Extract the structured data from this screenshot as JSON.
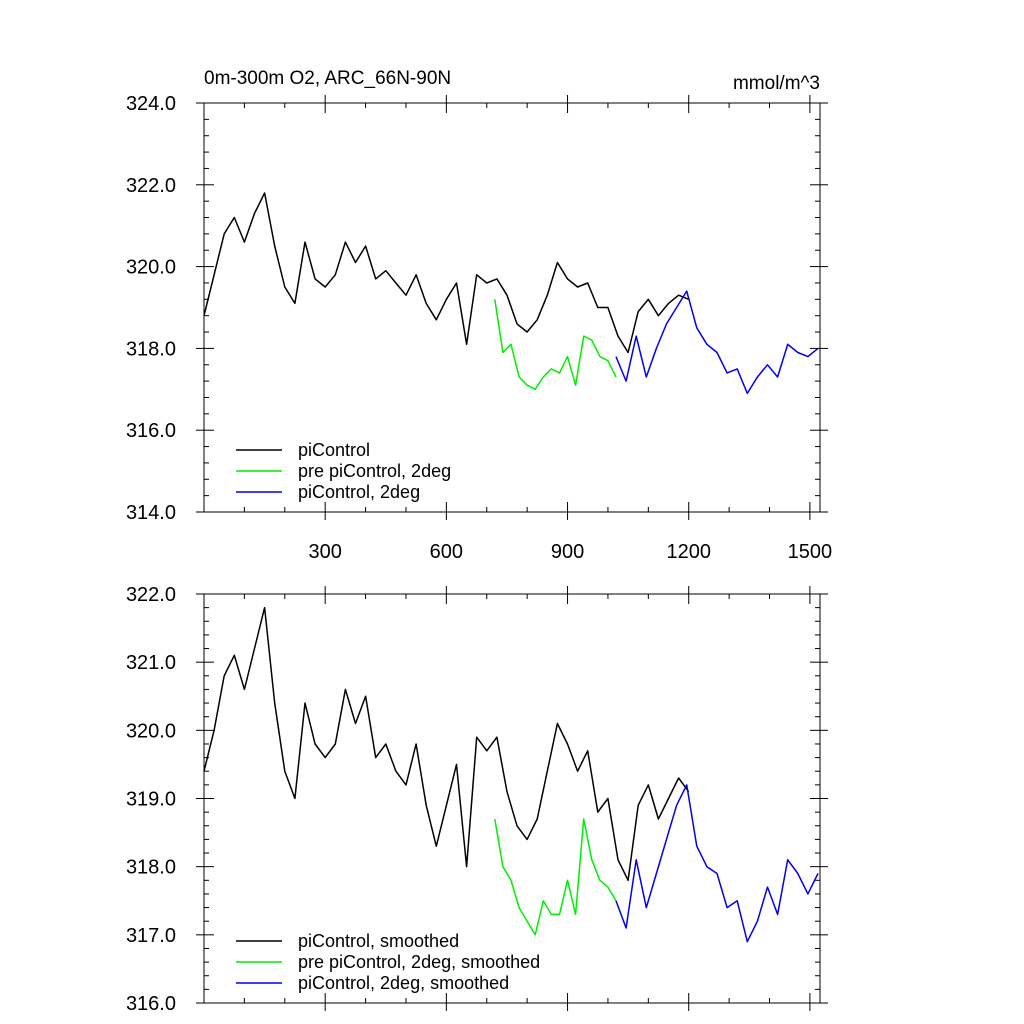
{
  "chart_data": [
    {
      "type": "line",
      "title": "0m-300m O2, ARC_66N-90N",
      "units": "mmol/m^3",
      "xlim": [
        0,
        1525
      ],
      "ylim": [
        314,
        324
      ],
      "xticks": [
        300,
        600,
        900,
        1200,
        1500
      ],
      "xtick_labels": [
        "300",
        "600",
        "900",
        "1200",
        "1500"
      ],
      "yticks": [
        314,
        316,
        318,
        320,
        322,
        324
      ],
      "ytick_labels": [
        "314.0",
        "316.0",
        "318.0",
        "320.0",
        "322.0",
        "324.0"
      ],
      "legend_placement": "bottom-left",
      "series": [
        {
          "name": "piControl",
          "color": "#000000",
          "x": [
            0,
            25,
            50,
            75,
            100,
            125,
            150,
            175,
            200,
            225,
            250,
            275,
            300,
            325,
            350,
            375,
            400,
            425,
            450,
            475,
            500,
            525,
            550,
            575,
            600,
            625,
            650,
            675,
            700,
            725,
            750,
            775,
            800,
            825,
            850,
            875,
            900,
            925,
            950,
            975,
            1000,
            1025,
            1050,
            1075,
            1100,
            1125,
            1150,
            1175,
            1200
          ],
          "y": [
            318.8,
            319.8,
            320.8,
            321.2,
            320.6,
            321.3,
            321.8,
            320.5,
            319.5,
            319.1,
            320.6,
            319.7,
            319.5,
            319.8,
            320.6,
            320.1,
            320.5,
            319.7,
            319.9,
            319.6,
            319.3,
            319.8,
            319.1,
            318.7,
            319.2,
            319.6,
            318.1,
            319.8,
            319.6,
            319.7,
            319.3,
            318.6,
            318.4,
            318.7,
            319.3,
            320.1,
            319.7,
            319.5,
            319.6,
            319.0,
            319.0,
            318.3,
            317.9,
            318.9,
            319.2,
            318.8,
            319.1,
            319.3,
            319.2
          ]
        },
        {
          "name": "pre piControl, 2deg",
          "color": "#00ee00",
          "x": [
            720,
            740,
            760,
            780,
            800,
            820,
            840,
            860,
            880,
            900,
            920,
            940,
            960,
            980,
            1000,
            1020
          ],
          "y": [
            319.2,
            317.9,
            318.1,
            317.3,
            317.1,
            317.0,
            317.3,
            317.5,
            317.4,
            317.8,
            317.1,
            318.3,
            318.2,
            317.8,
            317.7,
            317.3
          ]
        },
        {
          "name": "piControl, 2deg",
          "color": "#0000ee",
          "x": [
            1020,
            1045,
            1070,
            1095,
            1120,
            1145,
            1170,
            1195,
            1220,
            1245,
            1270,
            1295,
            1320,
            1345,
            1370,
            1395,
            1420,
            1445,
            1470,
            1495,
            1520
          ],
          "y": [
            317.8,
            317.2,
            318.3,
            317.3,
            318.0,
            318.6,
            319.0,
            319.4,
            318.5,
            318.1,
            317.9,
            317.4,
            317.5,
            316.9,
            317.3,
            317.6,
            317.3,
            318.1,
            317.9,
            317.8,
            318.0
          ]
        }
      ]
    },
    {
      "type": "line",
      "xlim": [
        0,
        1525
      ],
      "ylim": [
        316,
        322
      ],
      "yticks": [
        316,
        317,
        318,
        319,
        320,
        321,
        322
      ],
      "ytick_labels": [
        "316.0",
        "317.0",
        "318.0",
        "319.0",
        "320.0",
        "321.0",
        "322.0"
      ],
      "legend_placement": "bottom-left",
      "series": [
        {
          "name": "piControl, smoothed",
          "color": "#000000",
          "x": [
            0,
            25,
            50,
            75,
            100,
            125,
            150,
            175,
            200,
            225,
            250,
            275,
            300,
            325,
            350,
            375,
            400,
            425,
            450,
            475,
            500,
            525,
            550,
            575,
            600,
            625,
            650,
            675,
            700,
            725,
            750,
            775,
            800,
            825,
            850,
            875,
            900,
            925,
            950,
            975,
            1000,
            1025,
            1050,
            1075,
            1100,
            1125,
            1150,
            1175,
            1200
          ],
          "y": [
            319.4,
            320.0,
            320.8,
            321.1,
            320.6,
            321.2,
            321.8,
            320.4,
            319.4,
            319.0,
            320.4,
            319.8,
            319.6,
            319.8,
            320.6,
            320.1,
            320.5,
            319.6,
            319.8,
            319.4,
            319.2,
            319.8,
            318.9,
            318.3,
            318.9,
            319.5,
            318.0,
            319.9,
            319.7,
            319.9,
            319.1,
            318.6,
            318.4,
            318.7,
            319.4,
            320.1,
            319.8,
            319.4,
            319.7,
            318.8,
            319.0,
            318.1,
            317.8,
            318.9,
            319.2,
            318.7,
            319.0,
            319.3,
            319.1
          ]
        },
        {
          "name": "pre piControl, 2deg, smoothed",
          "color": "#00ee00",
          "x": [
            720,
            740,
            760,
            780,
            800,
            820,
            840,
            860,
            880,
            900,
            920,
            940,
            960,
            980,
            1000,
            1020
          ],
          "y": [
            318.7,
            318.0,
            317.8,
            317.4,
            317.2,
            317.0,
            317.5,
            317.3,
            317.3,
            317.8,
            317.3,
            318.7,
            318.1,
            317.8,
            317.7,
            317.5
          ]
        },
        {
          "name": "piControl, 2deg, smoothed",
          "color": "#0000ee",
          "x": [
            1020,
            1045,
            1070,
            1095,
            1120,
            1145,
            1170,
            1195,
            1220,
            1245,
            1270,
            1295,
            1320,
            1345,
            1370,
            1395,
            1420,
            1445,
            1470,
            1495,
            1520
          ],
          "y": [
            317.5,
            317.1,
            318.1,
            317.4,
            317.9,
            318.4,
            318.9,
            319.2,
            318.3,
            318.0,
            317.9,
            317.4,
            317.5,
            316.9,
            317.2,
            317.7,
            317.3,
            318.1,
            317.9,
            317.6,
            317.9
          ]
        }
      ]
    }
  ]
}
